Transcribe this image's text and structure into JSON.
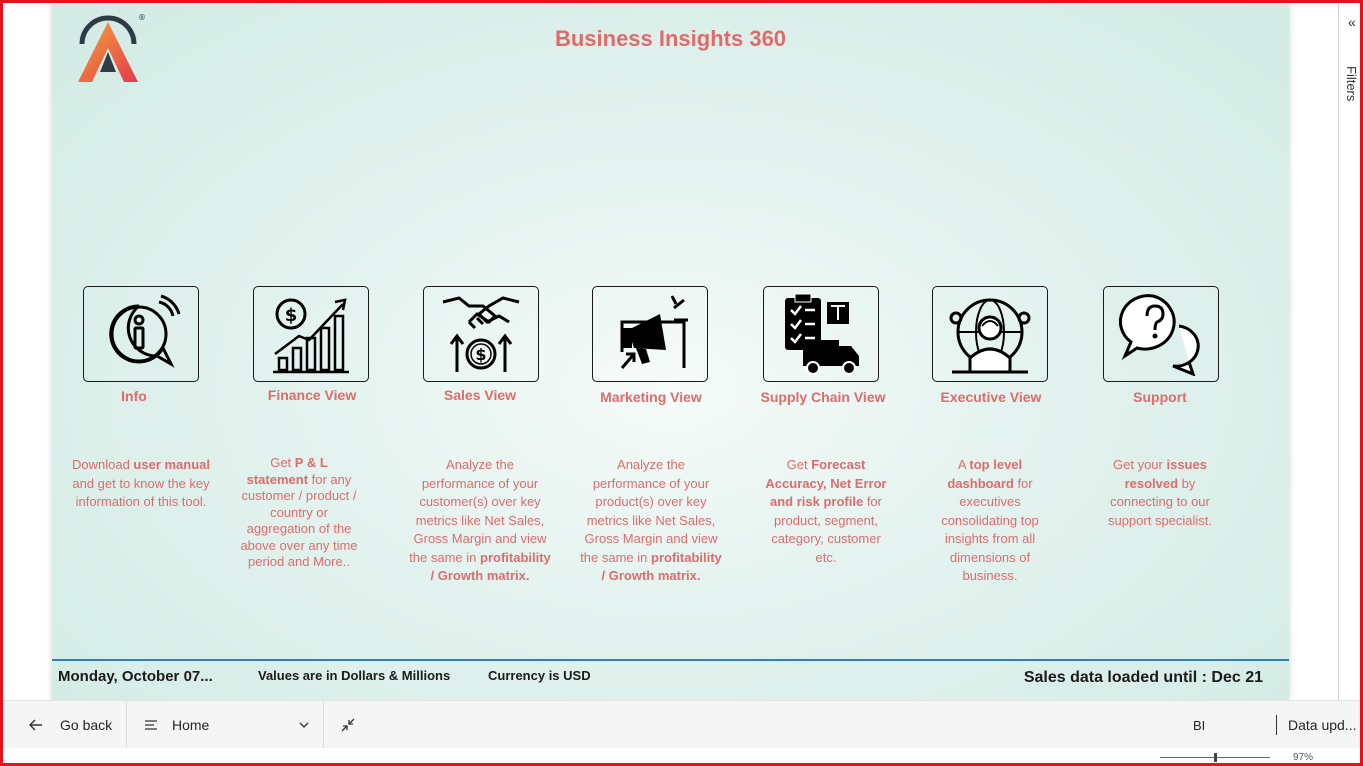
{
  "report": {
    "title": "Business Insights 360",
    "logo": "atliq-logo",
    "tiles": [
      {
        "id": "info",
        "label": "Info",
        "icon": "info-icon",
        "desc": [
          [
            "Download ",
            false
          ],
          [
            "user manual",
            true
          ],
          [
            " and get to know the key information of this tool.",
            false
          ]
        ]
      },
      {
        "id": "finance",
        "label": "Finance View",
        "icon": "finance-growth-icon",
        "desc": [
          [
            "Get  ",
            false
          ],
          [
            "P & L statement",
            true
          ],
          [
            " for any customer / product / country or aggregation of the above over any time period and More..",
            false
          ]
        ]
      },
      {
        "id": "sales",
        "label": "Sales View",
        "icon": "handshake-dollar-icon",
        "desc": [
          [
            "Analyze the performance of your customer(s) over key metrics like Net Sales, Gross Margin and view the same in ",
            false
          ],
          [
            "profitability / Growth matrix.",
            true
          ]
        ]
      },
      {
        "id": "marketing",
        "label": "Marketing View",
        "icon": "megaphone-icon",
        "desc": [
          [
            "Analyze the performance of your product(s) over key metrics like Net Sales, Gross Margin and view the same in ",
            false
          ],
          [
            "profitability / Growth matrix.",
            true
          ]
        ]
      },
      {
        "id": "supply",
        "label": "Supply Chain View",
        "icon": "truck-checklist-icon",
        "desc": [
          [
            "Get ",
            false
          ],
          [
            "Forecast Accuracy, Net Error and risk profile",
            true
          ],
          [
            " for product, segment, category, customer etc.",
            false
          ]
        ]
      },
      {
        "id": "executive",
        "label": "Executive View",
        "icon": "executive-globe-icon",
        "desc": [
          [
            "A ",
            false
          ],
          [
            "top level dashboard",
            true
          ],
          [
            " for executives consolidating top insights from all dimensions of business.",
            false
          ]
        ]
      },
      {
        "id": "support",
        "label": "Support",
        "icon": "chat-question-icon",
        "desc": [
          [
            "Get your ",
            false
          ],
          [
            "issues resolved",
            true
          ],
          [
            " by connecting to our support specialist.",
            false
          ]
        ]
      }
    ],
    "footer": {
      "date": "Monday, October 07...",
      "values_note": "Values are in Dollars & Millions",
      "currency_note": "Currency is USD",
      "loaded_note": "Sales data loaded until : Dec 21"
    }
  },
  "filters_pane": {
    "label": "Filters",
    "collapse_icon": "double-chevron-left-icon"
  },
  "bottom_bar": {
    "go_back": "Go back",
    "page_select": "Home",
    "bi_label": "BI",
    "data_updated": "Data upd..."
  },
  "status": {
    "zoom": "97%"
  },
  "colors": {
    "accent": "#e06b6b",
    "divider": "#2f7fc1",
    "frame": "#e8101a"
  }
}
